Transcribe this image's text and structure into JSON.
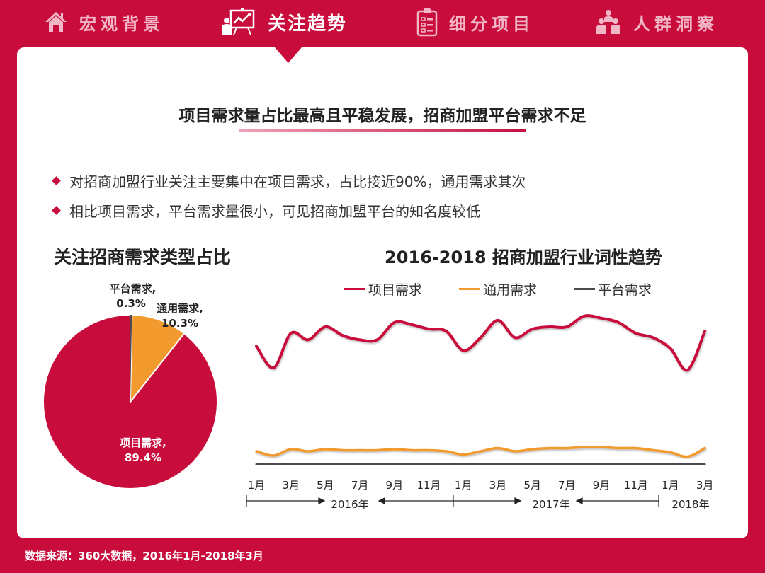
{
  "nav": {
    "items": [
      {
        "label": "宏观背景",
        "icon": "home-icon",
        "active": false
      },
      {
        "label": "关注趋势",
        "icon": "presentation-chart-icon",
        "active": true
      },
      {
        "label": "细分项目",
        "icon": "clipboard-checklist-icon",
        "active": false
      },
      {
        "label": "人群洞察",
        "icon": "people-group-icon",
        "active": false
      }
    ]
  },
  "headline": "项目需求量占比最高且平稳发展，招商加盟平台需求不足",
  "bullets": [
    "对招商加盟行业关注主要集中在项目需求，占比接近90%，通用需求其次",
    "相比项目需求，平台需求量很小，可见招商加盟平台的知名度较低"
  ],
  "pie": {
    "title": "关注招商需求类型占比",
    "labels": [
      {
        "name": "平台需求,",
        "value": "0.3%"
      },
      {
        "name": "通用需求,",
        "value": "10.3%"
      },
      {
        "name": "项目需求,",
        "value": "89.4%"
      }
    ]
  },
  "line": {
    "title": "2016-2018 招商加盟行业词性趋势",
    "legend": [
      "项目需求",
      "通用需求",
      "平台需求"
    ],
    "x_ticks": [
      "1月",
      "3月",
      "5月",
      "7月",
      "9月",
      "11月",
      "1月",
      "3月",
      "5月",
      "7月",
      "9月",
      "11月",
      "1月",
      "3月"
    ],
    "years": [
      "2016年",
      "2017年",
      "2018年"
    ]
  },
  "source": "数据来源：360大数据，2016年1月-2018年3月",
  "colors": {
    "brand": "#c80c3c",
    "orange": "#f29a2e",
    "gray": "#4d4a4f"
  },
  "chart_data": [
    {
      "type": "pie",
      "title": "关注招商需求类型占比",
      "categories": [
        "项目需求",
        "通用需求",
        "平台需求"
      ],
      "values": [
        89.4,
        10.3,
        0.3
      ],
      "unit": "%",
      "colors": [
        "#c80c3c",
        "#f29a2e",
        "#4d4a4f"
      ]
    },
    {
      "type": "line",
      "title": "2016-2018 招商加盟行业词性趋势",
      "x": [
        "2016-01",
        "2016-02",
        "2016-03",
        "2016-04",
        "2016-05",
        "2016-06",
        "2016-07",
        "2016-08",
        "2016-09",
        "2016-10",
        "2016-11",
        "2016-12",
        "2017-01",
        "2017-02",
        "2017-03",
        "2017-04",
        "2017-05",
        "2017-06",
        "2017-07",
        "2017-08",
        "2017-09",
        "2017-10",
        "2017-11",
        "2017-12",
        "2018-01",
        "2018-02",
        "2018-03"
      ],
      "x_tick_labels": [
        "1月",
        "3月",
        "5月",
        "7月",
        "9月",
        "11月",
        "1月",
        "3月",
        "5月",
        "7月",
        "9月",
        "11月",
        "1月",
        "3月"
      ],
      "xlabel": "",
      "ylabel": "",
      "grid": false,
      "legend_position": "top",
      "note": "No y-axis shown; values are relative index (0-100) estimated from pixel positions",
      "series": [
        {
          "name": "项目需求",
          "color": "#c80c3c",
          "values": [
            78,
            68,
            84,
            81,
            87,
            83,
            81,
            81,
            89,
            88,
            86,
            85,
            76,
            82,
            90,
            82,
            86,
            87,
            87,
            92,
            91,
            89,
            84,
            82,
            77,
            67,
            85
          ]
        },
        {
          "name": "通用需求",
          "color": "#f29a2e",
          "values": [
            6,
            4,
            7,
            6,
            7,
            6.5,
            6.5,
            6.5,
            7,
            6.5,
            6.5,
            6,
            4.5,
            6,
            7.5,
            6,
            7,
            7.5,
            7.5,
            8,
            8,
            7.5,
            7.5,
            6.5,
            5.5,
            3.5,
            7.5
          ]
        },
        {
          "name": "平台需求",
          "color": "#4d4a4f",
          "values": [
            0.3,
            0.3,
            0.3,
            0.3,
            0.3,
            0.3,
            0.4,
            0.5,
            0.6,
            0.4,
            0.3,
            0.3,
            0.3,
            0.3,
            0.3,
            0.3,
            0.3,
            0.3,
            0.3,
            0.3,
            0.3,
            0.3,
            0.3,
            0.3,
            0.3,
            0.3,
            0.3
          ]
        }
      ]
    }
  ]
}
